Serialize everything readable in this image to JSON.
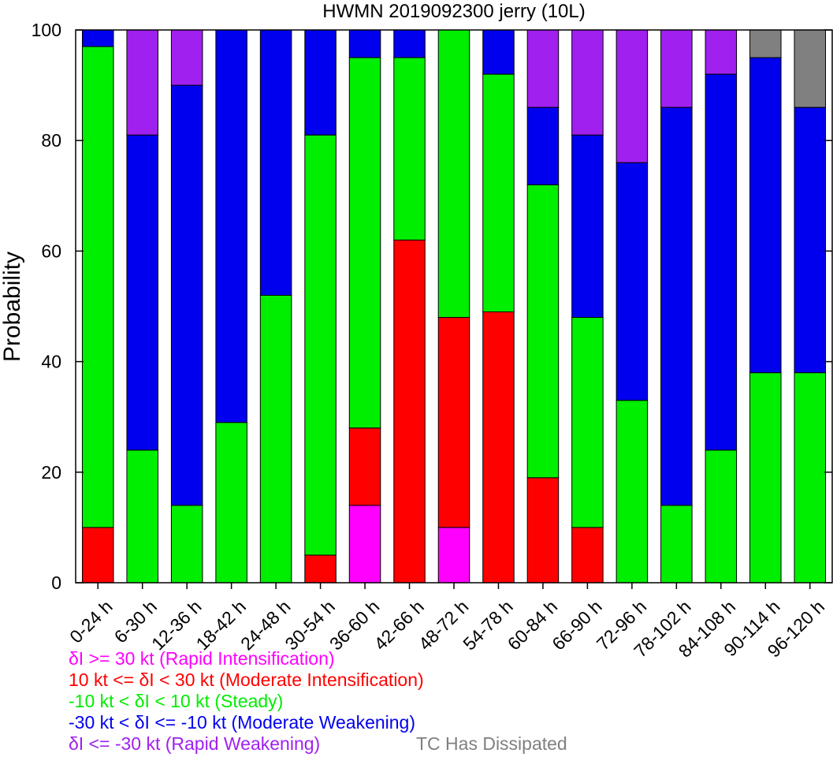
{
  "chart_data": {
    "type": "bar",
    "stacked": true,
    "title": "HWMN 2019092300 jerry (10L)",
    "xlabel": "",
    "ylabel": "Probability",
    "ylim": [
      0,
      100
    ],
    "yticks": [
      0,
      20,
      40,
      60,
      80,
      100
    ],
    "grid": false,
    "legend_position": "bottom-left, below plot",
    "categories": [
      "0-24 h",
      "6-30 h",
      "12-36 h",
      "18-42 h",
      "24-48 h",
      "30-54 h",
      "36-60 h",
      "42-66 h",
      "48-72 h",
      "54-78 h",
      "60-84 h",
      "66-90 h",
      "72-96 h",
      "78-102 h",
      "84-108 h",
      "90-114 h",
      "96-120 h"
    ],
    "series": [
      {
        "name": "δI >= 30 kt (Rapid Intensification)",
        "color": "#ff00ff",
        "values": [
          0,
          0,
          0,
          0,
          0,
          0,
          14,
          0,
          10,
          0,
          0,
          0,
          0,
          0,
          0,
          0,
          0
        ]
      },
      {
        "name": "10 kt <= δI < 30 kt (Moderate Intensification)",
        "color": "#ff0000",
        "values": [
          10,
          0,
          0,
          0,
          0,
          5,
          14,
          62,
          38,
          49,
          19,
          10,
          0,
          0,
          0,
          0,
          0
        ]
      },
      {
        "name": "-10 kt < δI < 10 kt (Steady)",
        "color": "#00ee00",
        "values": [
          87,
          24,
          14,
          29,
          52,
          76,
          67,
          33,
          52,
          43,
          53,
          38,
          33,
          14,
          24,
          38,
          38
        ]
      },
      {
        "name": "-30 kt < δI <= -10 kt (Moderate Weakening)",
        "color": "#0000ee",
        "values": [
          3,
          57,
          76,
          71,
          48,
          19,
          5,
          5,
          0,
          8,
          14,
          33,
          43,
          72,
          68,
          57,
          48
        ]
      },
      {
        "name": "δI <= -30 kt (Rapid Weakening)",
        "color": "#a020f0",
        "values": [
          0,
          19,
          10,
          0,
          0,
          0,
          0,
          0,
          0,
          0,
          14,
          19,
          24,
          14,
          8,
          0,
          0
        ]
      },
      {
        "name": "TC Has Dissipated",
        "color": "#808080",
        "values": [
          0,
          0,
          0,
          0,
          0,
          0,
          0,
          0,
          0,
          0,
          0,
          0,
          0,
          0,
          0,
          5,
          14
        ]
      }
    ]
  }
}
